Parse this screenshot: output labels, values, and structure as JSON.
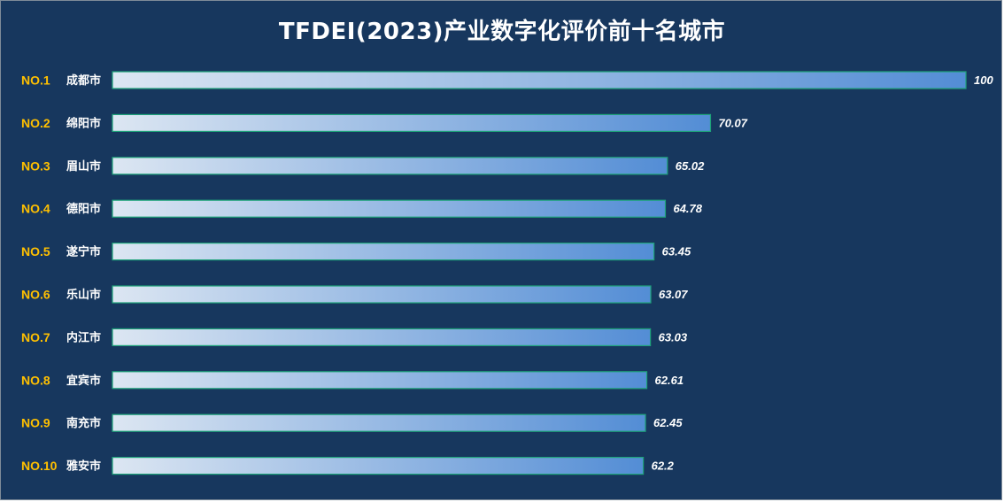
{
  "chart_data": {
    "type": "bar",
    "orientation": "horizontal",
    "title": "TFDEI(2023)产业数字化评价前十名城市",
    "ranks": [
      "NO.1",
      "NO.2",
      "NO.3",
      "NO.4",
      "NO.5",
      "NO.6",
      "NO.7",
      "NO.8",
      "NO.9",
      "NO.10"
    ],
    "categories": [
      "成都市",
      "绵阳市",
      "眉山市",
      "德阳市",
      "遂宁市",
      "乐山市",
      "内江市",
      "宜宾市",
      "南充市",
      "雅安市"
    ],
    "values": [
      100,
      70.07,
      65.02,
      64.78,
      63.45,
      63.07,
      63.03,
      62.61,
      62.45,
      62.2
    ],
    "value_labels": [
      "100",
      "70.07",
      "65.02",
      "64.78",
      "63.45",
      "63.07",
      "63.03",
      "62.61",
      "62.45",
      "62.2"
    ],
    "xlim": [
      0,
      100
    ],
    "grid": false,
    "legend": "none",
    "colors": {
      "background": "#17375e",
      "bar_start": "#dce6f2",
      "bar_end": "#538dd5",
      "bar_border": "#1ea37a",
      "rank_text": "#ffc000",
      "label_text": "#ffffff"
    }
  }
}
